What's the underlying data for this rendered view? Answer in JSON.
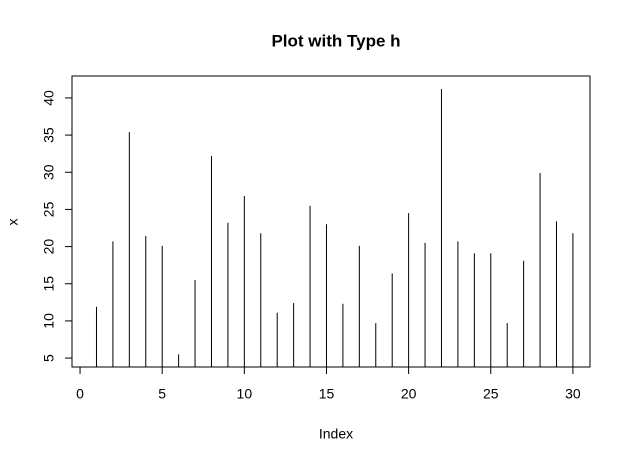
{
  "chart_data": {
    "type": "spike",
    "title": "Plot with Type h",
    "x_label": "Index",
    "y_label": "x",
    "x": [
      1,
      2,
      3,
      4,
      5,
      6,
      7,
      8,
      9,
      10,
      11,
      12,
      13,
      14,
      15,
      16,
      17,
      18,
      19,
      20,
      21,
      22,
      23,
      24,
      25,
      26,
      27,
      28,
      29,
      30
    ],
    "values": [
      11.9,
      20.7,
      35.4,
      21.4,
      20.1,
      5.5,
      15.5,
      32.2,
      23.2,
      26.8,
      21.8,
      11.1,
      12.4,
      25.5,
      23.0,
      12.3,
      20.1,
      9.7,
      16.4,
      24.5,
      20.5,
      41.2,
      20.7,
      19.1,
      19.1,
      9.7,
      18.1,
      29.9,
      23.4,
      21.8
    ],
    "color": "#000000",
    "xlim": [
      -0.49,
      31.04
    ],
    "ylim": [
      3.8,
      42.95
    ],
    "xticks": [
      0,
      5,
      10,
      15,
      20,
      25,
      30
    ],
    "yticks": [
      5,
      10,
      15,
      20,
      25,
      30,
      35,
      40
    ]
  }
}
